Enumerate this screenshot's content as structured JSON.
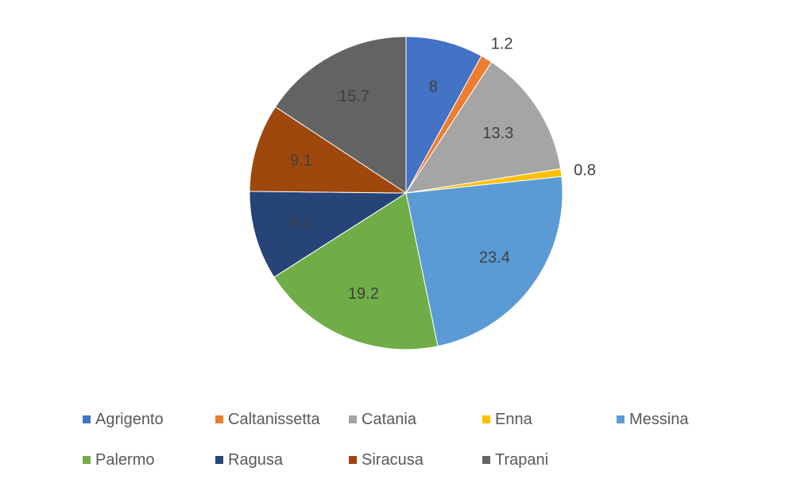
{
  "chart_data": {
    "type": "pie",
    "title": "",
    "start_angle_deg": 0,
    "direction": "clockwise",
    "legend_position": "bottom",
    "slices": [
      {
        "label": "Agrigento",
        "value": 8,
        "value_label": "8",
        "color": "#4472C4",
        "label_placement": "inside",
        "label_color": "#404040"
      },
      {
        "label": "Caltanissetta",
        "value": 1.2,
        "value_label": "1.2",
        "color": "#ED7D31",
        "label_placement": "outside",
        "label_color": "#404040"
      },
      {
        "label": "Catania",
        "value": 13.3,
        "value_label": "13.3",
        "color": "#A5A5A5",
        "label_placement": "inside",
        "label_color": "#404040"
      },
      {
        "label": "Enna",
        "value": 0.8,
        "value_label": "0.8",
        "color": "#FFC000",
        "label_placement": "outside",
        "label_color": "#404040"
      },
      {
        "label": "Messina",
        "value": 23.4,
        "value_label": "23.4",
        "color": "#5B9BD5",
        "label_placement": "inside",
        "label_color": "#404040"
      },
      {
        "label": "Palermo",
        "value": 19.2,
        "value_label": "19.2",
        "color": "#70AD47",
        "label_placement": "inside",
        "label_color": "#404040"
      },
      {
        "label": "Ragusa",
        "value": 9.2,
        "value_label": "9.2",
        "color": "#264478",
        "label_placement": "inside",
        "label_color": "#404040"
      },
      {
        "label": "Siracusa",
        "value": 9.1,
        "value_label": "9.1",
        "color": "#9E480E",
        "label_placement": "inside",
        "label_color": "#404040"
      },
      {
        "label": "Trapani",
        "value": 15.7,
        "value_label": "15.7",
        "color": "#636363",
        "label_placement": "inside",
        "label_color": "#404040"
      }
    ]
  }
}
